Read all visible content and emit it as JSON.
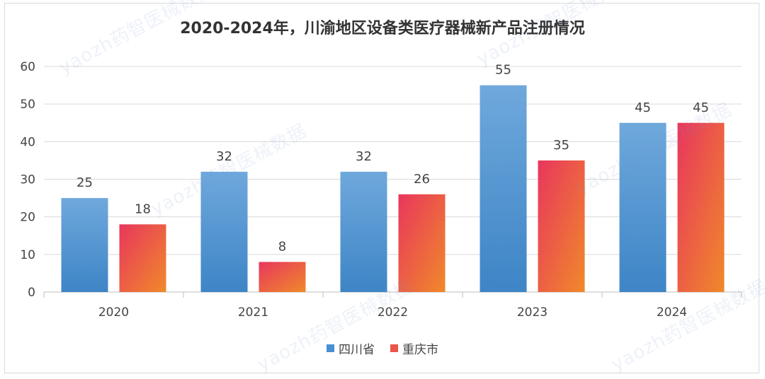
{
  "chart_data": {
    "type": "bar",
    "title": "2020-2024年，川渝地区设备类医疗器械新产品注册情况",
    "categories": [
      "2020",
      "2021",
      "2022",
      "2023",
      "2024"
    ],
    "series": [
      {
        "name": "四川省",
        "values": [
          25,
          32,
          32,
          55,
          45
        ],
        "color_top": "#6fa8dc",
        "color_bottom": "#3d85c6"
      },
      {
        "name": "重庆市",
        "values": [
          18,
          8,
          26,
          35,
          45
        ],
        "color_top": "#e8365d",
        "color_bottom": "#f0892a"
      }
    ],
    "ylim": [
      0,
      60
    ],
    "yticks": [
      0,
      10,
      20,
      30,
      40,
      50,
      60
    ],
    "grid": true,
    "legend_position": "bottom",
    "xlabel": "",
    "ylabel": ""
  },
  "watermark": "yaozh药智医械数据"
}
